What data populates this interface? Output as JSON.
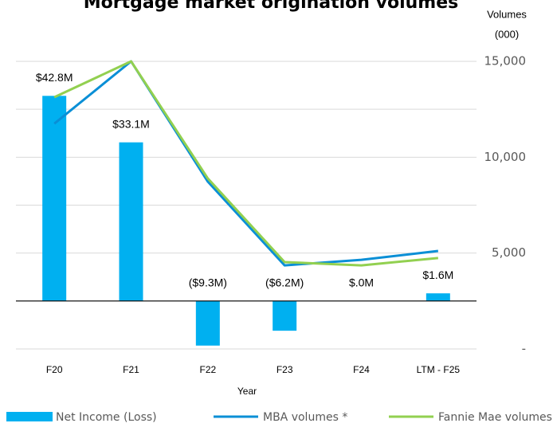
{
  "chart_data": {
    "type": "bar-line",
    "title": "Mortgage market origination volumes",
    "y2_label": [
      "Volumes",
      "(000)"
    ],
    "x_label": "Year",
    "categories": [
      "F20",
      "F21",
      "F22",
      "F23",
      "F24",
      "LTM - F25"
    ],
    "ylim": [
      -10,
      50
    ],
    "yticks": [
      -10,
      0,
      10,
      20,
      30,
      40,
      50
    ],
    "y2lim": [
      0,
      15000
    ],
    "y2ticks": [
      {
        "value": 0,
        "label": "-"
      },
      {
        "value": 5000,
        "label": "5,000"
      },
      {
        "value": 10000,
        "label": "10,000"
      },
      {
        "value": 15000,
        "label": "15,000"
      }
    ],
    "grid": true,
    "series": [
      {
        "name": "Net Income (Loss)",
        "type": "bar",
        "color": "#00b0f0",
        "values": [
          42.8,
          33.1,
          -9.3,
          -6.2,
          0,
          1.6
        ],
        "value_labels": [
          "$42.8M",
          "$33.1M",
          "($9.3M)",
          "($6.2M)",
          "$.0M",
          "$1.6M"
        ]
      },
      {
        "name": "MBA volumes *",
        "type": "line",
        "axis": "y2",
        "color": "#0a8fd6",
        "values": [
          11750,
          15000,
          8725,
          4360,
          4650,
          5110
        ]
      },
      {
        "name": "Fannie Mae volumes **",
        "type": "line",
        "axis": "y2",
        "color": "#92d050",
        "values": [
          13130,
          15000,
          8890,
          4530,
          4360,
          4740
        ]
      }
    ]
  }
}
